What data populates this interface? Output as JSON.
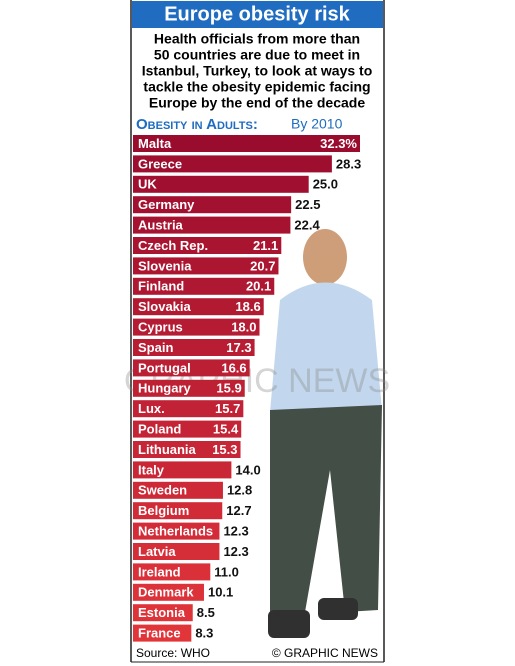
{
  "chart_data": {
    "type": "bar",
    "orientation": "horizontal",
    "title": "Europe obesity risk",
    "subtitle": [
      "Health officials from more than",
      "50 countries are due to meet in",
      "Istanbul, Turkey, to look at ways to",
      "tackle the obesity epidemic facing",
      "Europe by the end of the decade"
    ],
    "chart_heading": "Obesity in Adults:",
    "period": "By 2010",
    "categories": [
      "Malta",
      "Greece",
      "UK",
      "Germany",
      "Austria",
      "Czech Rep.",
      "Slovenia",
      "Finland",
      "Slovakia",
      "Cyprus",
      "Spain",
      "Portugal",
      "Hungary",
      "Lux.",
      "Poland",
      "Lithuania",
      "Italy",
      "Sweden",
      "Belgium",
      "Netherlands",
      "Latvia",
      "Ireland",
      "Denmark",
      "Estonia",
      "France"
    ],
    "values": [
      32.3,
      28.3,
      25.0,
      22.5,
      22.4,
      21.1,
      20.7,
      20.1,
      18.6,
      18.0,
      17.3,
      16.6,
      15.9,
      15.7,
      15.4,
      15.3,
      14.0,
      12.8,
      12.7,
      12.3,
      12.3,
      11.0,
      10.1,
      8.5,
      8.3
    ],
    "value_labels": [
      "32.3%",
      "28.3",
      "25.0",
      "22.5",
      "22.4",
      "21.1",
      "20.7",
      "20.1",
      "18.6",
      "18.0",
      "17.3",
      "16.6",
      "15.9",
      "15.7",
      "15.4",
      "15.3",
      "14.0",
      "12.8",
      "12.7",
      "12.3",
      "12.3",
      "11.0",
      "10.1",
      "8.5",
      "8.3"
    ],
    "colors": [
      "#9a0c2e",
      "#e2353a"
    ],
    "source": "Source: WHO",
    "credit": "© GRAPHIC NEWS",
    "watermark": "GRAPHIC NEWS"
  }
}
